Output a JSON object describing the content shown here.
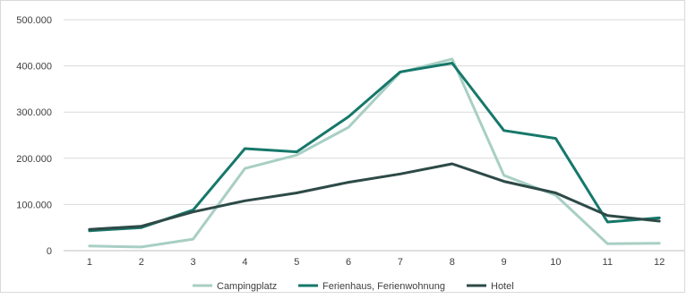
{
  "chart_data": {
    "type": "line",
    "title": "",
    "xlabel": "",
    "ylabel": "",
    "categories": [
      "1",
      "2",
      "3",
      "4",
      "5",
      "6",
      "7",
      "8",
      "9",
      "10",
      "11",
      "12"
    ],
    "ylim": [
      0,
      500000
    ],
    "yticks": [
      "0",
      "100.000",
      "200.000",
      "300.000",
      "400.000",
      "500.000"
    ],
    "ytick_values": [
      0,
      100000,
      200000,
      300000,
      400000,
      500000
    ],
    "grid": true,
    "legend_position": "bottom",
    "series": [
      {
        "name": "Campingplatz",
        "color": "#a8cfc4",
        "values": [
          10000,
          8000,
          25000,
          178000,
          207000,
          267000,
          386000,
          415000,
          163000,
          120000,
          15000,
          16000
        ]
      },
      {
        "name": "Ferienhaus, Ferienwohnung",
        "color": "#16786a",
        "values": [
          43000,
          50000,
          88000,
          221000,
          214000,
          290000,
          387000,
          406000,
          260000,
          243000,
          62000,
          71000
        ]
      },
      {
        "name": "Hotel",
        "color": "#2d4a47",
        "values": [
          46000,
          53000,
          84000,
          108000,
          125000,
          148000,
          166000,
          188000,
          150000,
          125000,
          76000,
          64000
        ]
      }
    ]
  }
}
